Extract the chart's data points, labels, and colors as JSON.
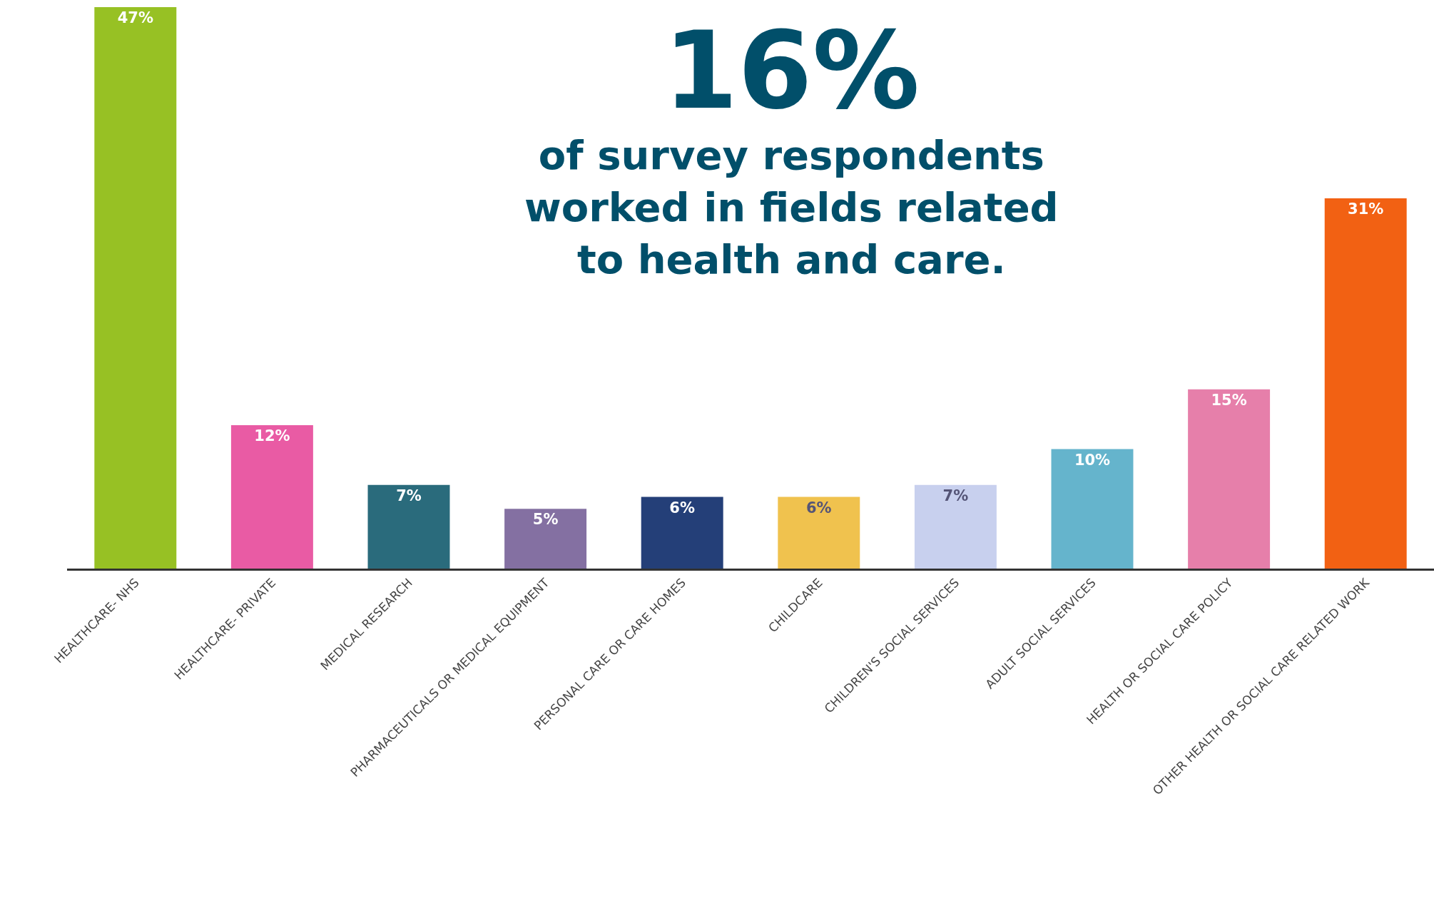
{
  "chart_data": {
    "type": "bar",
    "title": "16%",
    "subtitle": "of survey respondents\nworked in fields related\nto health and care.",
    "categories": [
      "HEALTHCARE- NHS",
      "HEALTHCARE- PRIVATE",
      "MEDICAL RESEARCH",
      "PHARMACEUTICALS OR MEDICAL EQUIPMENT",
      "PERSONAL CARE OR CARE HOMES",
      "CHILDCARE",
      "CHILDREN'S SOCIAL SERVICES",
      "ADULT SOCIAL SERVICES",
      "HEALTH OR SOCIAL CARE POLICY",
      "OTHER HEALTH OR SOCIAL CARE RELATED WORK"
    ],
    "values": [
      47,
      12,
      7,
      5,
      6,
      6,
      7,
      10,
      15,
      31
    ],
    "value_labels": [
      "47%",
      "12%",
      "7%",
      "5%",
      "6%",
      "6%",
      "7%",
      "10%",
      "15%",
      "31%"
    ],
    "colors": [
      "#97c124",
      "#e95ba4",
      "#2a6b7c",
      "#8470a2",
      "#243f78",
      "#f0c24e",
      "#c8d0ee",
      "#65b4cc",
      "#e67faa",
      "#f26113"
    ]
  }
}
